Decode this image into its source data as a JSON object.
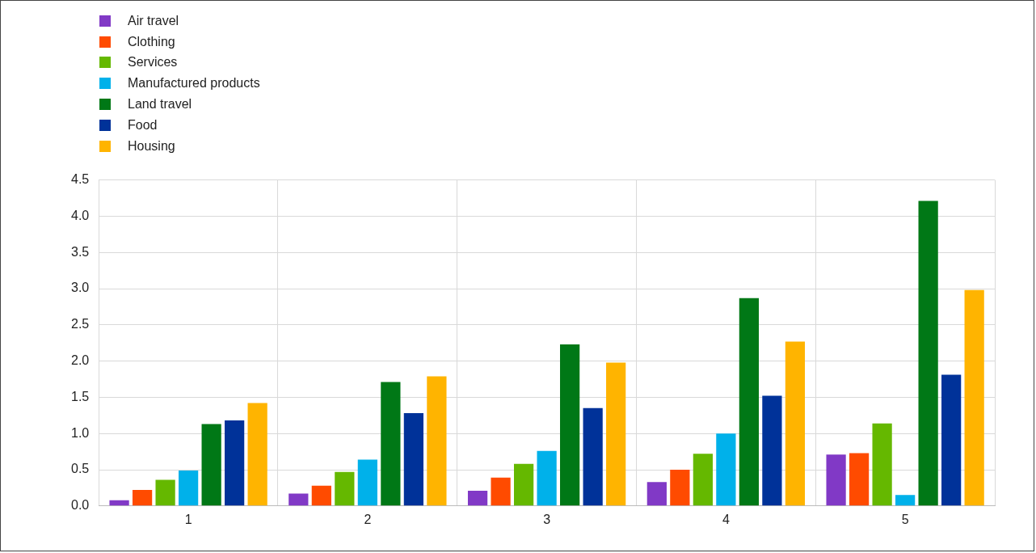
{
  "chart_data": {
    "type": "bar",
    "categories": [
      "1",
      "2",
      "3",
      "4",
      "5"
    ],
    "series": [
      {
        "name": "Air travel",
        "color": "#8139c6",
        "values": [
          0.08,
          0.17,
          0.21,
          0.33,
          0.71
        ]
      },
      {
        "name": "Clothing",
        "color": "#ff4b00",
        "values": [
          0.22,
          0.28,
          0.39,
          0.5,
          0.73
        ]
      },
      {
        "name": "Services",
        "color": "#65b800",
        "values": [
          0.36,
          0.47,
          0.58,
          0.72,
          1.14
        ]
      },
      {
        "name": "Manufactured products",
        "color": "#00b1ea",
        "values": [
          0.49,
          0.64,
          0.76,
          1.0,
          0.15
        ]
      },
      {
        "name": "Land travel",
        "color": "#007816",
        "values": [
          1.13,
          1.71,
          2.23,
          2.87,
          4.21
        ]
      },
      {
        "name": "Food",
        "color": "#003299",
        "values": [
          1.18,
          1.28,
          1.35,
          1.52,
          1.81
        ]
      },
      {
        "name": "Housing",
        "color": "#ffb400",
        "values": [
          1.42,
          1.79,
          1.98,
          2.27,
          2.98
        ]
      }
    ],
    "ylim": [
      0,
      4.5
    ],
    "yticks": [
      {
        "value": 0,
        "label": "0.0"
      },
      {
        "value": 0.5,
        "label": "0.5"
      },
      {
        "value": 1,
        "label": "1.0"
      },
      {
        "value": 1.5,
        "label": "1.5"
      },
      {
        "value": 2,
        "label": "2.0"
      },
      {
        "value": 2.5,
        "label": "2.5"
      },
      {
        "value": 3,
        "label": "3.0"
      },
      {
        "value": 3.5,
        "label": "3.5"
      },
      {
        "value": 4,
        "label": "4.0"
      },
      {
        "value": 4.5,
        "label": "4.5"
      }
    ],
    "grid": true,
    "legend": "top left"
  }
}
